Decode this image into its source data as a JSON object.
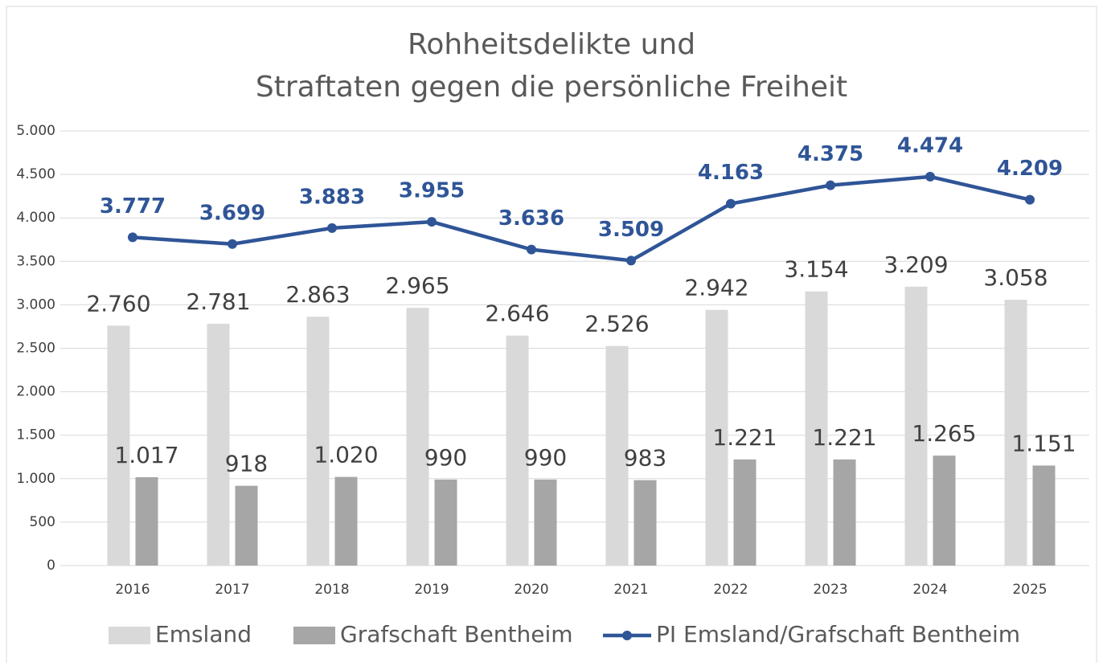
{
  "chart_data": {
    "type": "bar",
    "title": [
      "Rohheitsdelikte und",
      "Straftaten gegen die persönliche Freiheit"
    ],
    "categories": [
      "2016",
      "2017",
      "2018",
      "2019",
      "2020",
      "2021",
      "2022",
      "2023",
      "2024",
      "2025"
    ],
    "series": [
      {
        "name": "Emsland",
        "type": "bar",
        "color": "#d9d9d9",
        "values": [
          2760,
          2781,
          2863,
          2965,
          2646,
          2526,
          2942,
          3154,
          3209,
          3058
        ],
        "value_labels": [
          "2.760",
          "2.781",
          "2.863",
          "2.965",
          "2.646",
          "2.526",
          "2.942",
          "3.154",
          "3.209",
          "3.058"
        ]
      },
      {
        "name": "Grafschaft Bentheim",
        "type": "bar",
        "color": "#a6a6a6",
        "values": [
          1017,
          918,
          1020,
          990,
          990,
          983,
          1221,
          1221,
          1265,
          1151
        ],
        "value_labels": [
          "1.017",
          "918",
          "1.020",
          "990",
          "990",
          "983",
          "1.221",
          "1.221",
          "1.265",
          "1.151"
        ]
      },
      {
        "name": "PI Emsland/Grafschaft Bentheim",
        "type": "line",
        "color": "#2f5597",
        "values": [
          3777,
          3699,
          3883,
          3955,
          3636,
          3509,
          4163,
          4375,
          4474,
          4209
        ],
        "value_labels": [
          "3.777",
          "3.699",
          "3.883",
          "3.955",
          "3.636",
          "3.509",
          "4.163",
          "4.375",
          "4.474",
          "4.209"
        ]
      }
    ],
    "ylim": [
      0,
      5000
    ],
    "yticks": [
      0,
      500,
      {
        "value": 1000,
        "label": "1.000"
      },
      {
        "value": 1500,
        "label": "1.500"
      },
      {
        "value": 2000,
        "label": "2.000"
      },
      {
        "value": 2500,
        "label": "2.500"
      },
      {
        "value": 3000,
        "label": "3.000"
      },
      {
        "value": 3500,
        "label": "3.500"
      },
      {
        "value": 4000,
        "label": "4.000"
      },
      {
        "value": 4500,
        "label": "4.500"
      },
      {
        "value": 5000,
        "label": "5.000"
      }
    ],
    "grid": true,
    "legend": "bottom"
  }
}
